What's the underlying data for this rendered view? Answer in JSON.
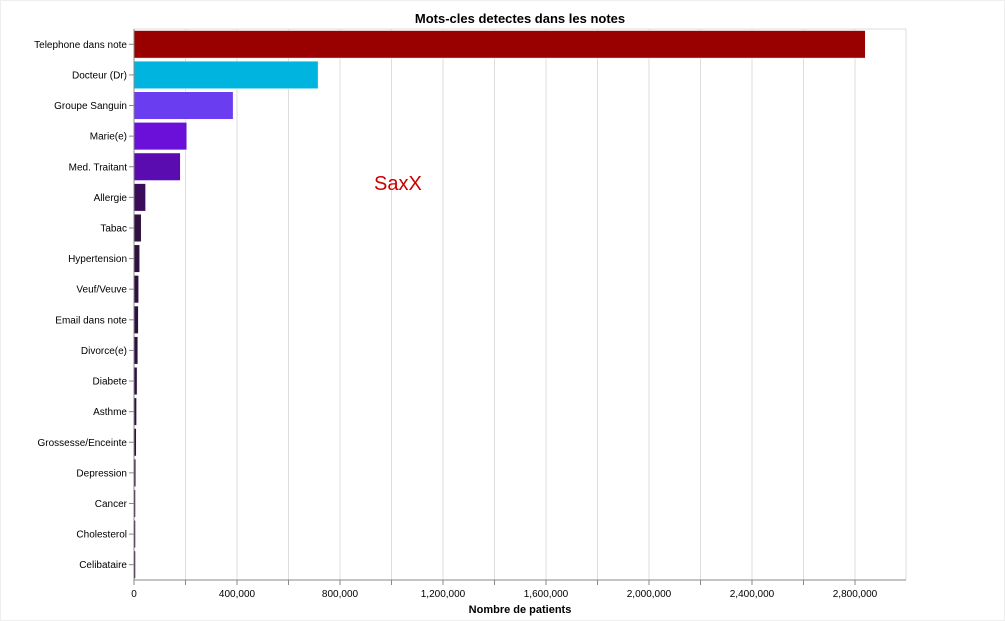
{
  "chart_data": {
    "type": "bar",
    "orientation": "horizontal",
    "title": "Mots-cles detectes dans les notes",
    "xlabel": "Nombre de patients",
    "ylabel": "",
    "xlim": [
      0,
      2800000
    ],
    "x_ticks": [
      "0",
      "400,000",
      "800,000",
      "1,200,000",
      "1,600,000",
      "2,000,000",
      "2,400,000",
      "2,800,000"
    ],
    "grid": true,
    "categories": [
      "Telephone dans note",
      "Docteur (Dr)",
      "Groupe Sanguin",
      "Marie(e)",
      "Med. Traitant",
      "Allergie",
      "Tabac",
      "Hypertension",
      "Veuf/Veuve",
      "Email dans note",
      "Divorce(e)",
      "Diabete",
      "Asthme",
      "Grossesse/Enceinte",
      "Depression",
      "Cancer",
      "Cholesterol",
      "Celibataire"
    ],
    "values": [
      2840000,
      715000,
      385000,
      205000,
      180000,
      45000,
      28000,
      22000,
      18000,
      17000,
      15000,
      12000,
      10000,
      9000,
      7000,
      4000,
      3000,
      2000
    ],
    "colors": [
      "#990000",
      "#00b4e0",
      "#6a3df0",
      "#6a10d8",
      "#5a0cb0",
      "#3a0c5a",
      "#30103e",
      "#2e1040",
      "#2e1040",
      "#2e1040",
      "#2e1040",
      "#2e1040",
      "#2e1040",
      "#2e1040",
      "#2e1040",
      "#2e1040",
      "#2e1040",
      "#2e1040"
    ]
  },
  "watermark": "SaxX"
}
